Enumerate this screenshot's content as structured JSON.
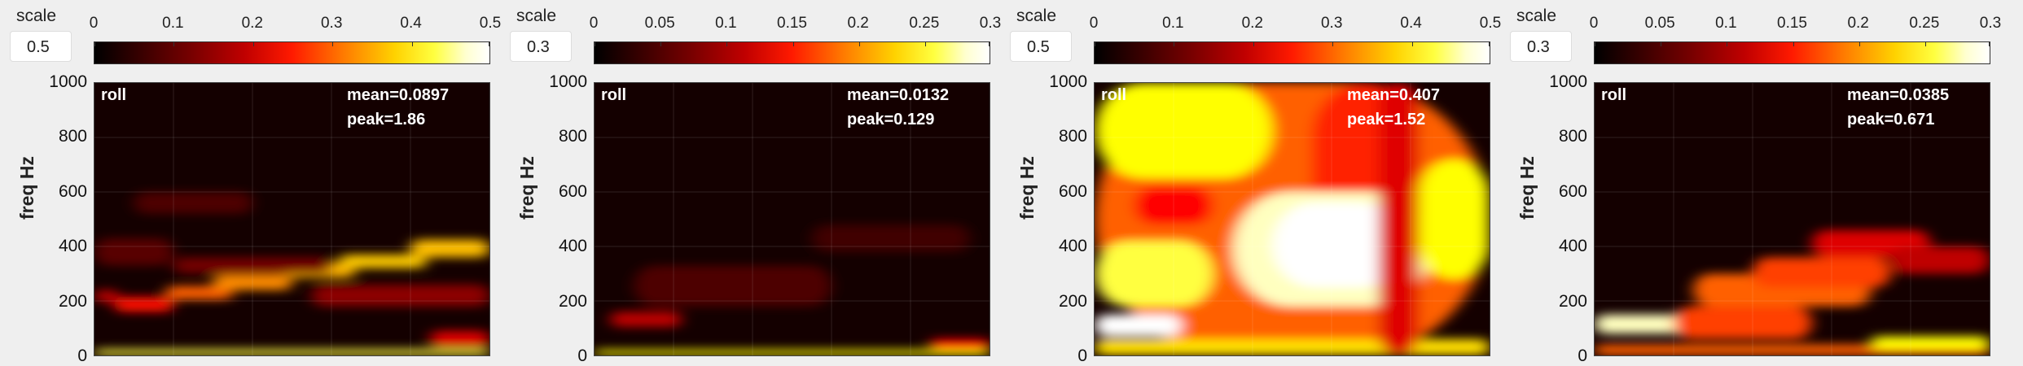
{
  "scale_label": "scale",
  "chart_data": [
    {
      "type": "heatmap",
      "scale_value": "0.5",
      "colorbar_ticks": [
        "0",
        "0.1",
        "0.2",
        "0.3",
        "0.4",
        "0.5"
      ],
      "clim": [
        0,
        0.5
      ],
      "ylabel": "freq Hz",
      "yticks": [
        "1000",
        "800",
        "600",
        "400",
        "200",
        "0"
      ],
      "ylim": [
        0,
        1000
      ],
      "label": "roll",
      "mean": "mean=0.0897",
      "peak": "peak=1.86",
      "colormap": "hot",
      "blobs": [
        {
          "x0": 0.0,
          "x1": 0.06,
          "y0": 195,
          "y1": 240,
          "v": 0.3
        },
        {
          "x0": 0.05,
          "x1": 0.2,
          "y0": 160,
          "y1": 215,
          "v": 0.42
        },
        {
          "x0": 0.18,
          "x1": 0.35,
          "y0": 205,
          "y1": 255,
          "v": 0.55
        },
        {
          "x0": 0.3,
          "x1": 0.5,
          "y0": 240,
          "y1": 295,
          "v": 0.62
        },
        {
          "x0": 0.48,
          "x1": 0.66,
          "y0": 285,
          "y1": 340,
          "v": 0.68
        },
        {
          "x0": 0.62,
          "x1": 0.84,
          "y0": 320,
          "y1": 370,
          "v": 0.72
        },
        {
          "x0": 0.8,
          "x1": 1.0,
          "y0": 360,
          "y1": 425,
          "v": 0.7
        },
        {
          "x0": 0.2,
          "x1": 0.6,
          "y0": 300,
          "y1": 360,
          "v": 0.18
        },
        {
          "x0": 0.55,
          "x1": 1.0,
          "y0": 180,
          "y1": 260,
          "v": 0.22
        },
        {
          "x0": 0.1,
          "x1": 0.4,
          "y0": 520,
          "y1": 600,
          "v": 0.12
        },
        {
          "x0": 0.0,
          "x1": 1.0,
          "y0": 0,
          "y1": 22,
          "v": 0.85
        },
        {
          "x0": 0.85,
          "x1": 1.0,
          "y0": 30,
          "y1": 90,
          "v": 0.35
        },
        {
          "x0": 0.0,
          "x1": 0.2,
          "y0": 330,
          "y1": 430,
          "v": 0.14
        }
      ]
    },
    {
      "type": "heatmap",
      "scale_value": "0.3",
      "colorbar_ticks": [
        "0",
        "0.05",
        "0.1",
        "0.15",
        "0.2",
        "0.25",
        "0.3"
      ],
      "clim": [
        0,
        0.3
      ],
      "ylabel": "freq Hz",
      "yticks": [
        "1000",
        "800",
        "600",
        "400",
        "200",
        "0"
      ],
      "ylim": [
        0,
        1000
      ],
      "label": "roll",
      "mean": "mean=0.0132",
      "peak": "peak=0.129",
      "colormap": "hot",
      "blobs": [
        {
          "x0": 0.04,
          "x1": 0.22,
          "y0": 105,
          "y1": 160,
          "v": 0.3
        },
        {
          "x0": 0.0,
          "x1": 1.0,
          "y0": 0,
          "y1": 20,
          "v": 0.8
        },
        {
          "x0": 0.1,
          "x1": 0.6,
          "y0": 180,
          "y1": 330,
          "v": 0.12
        },
        {
          "x0": 0.55,
          "x1": 0.95,
          "y0": 380,
          "y1": 480,
          "v": 0.1
        },
        {
          "x0": 0.85,
          "x1": 1.0,
          "y0": 20,
          "y1": 60,
          "v": 0.4
        }
      ]
    },
    {
      "type": "heatmap",
      "scale_value": "0.5",
      "colorbar_ticks": [
        "0",
        "0.1",
        "0.2",
        "0.3",
        "0.4",
        "0.5"
      ],
      "clim": [
        0,
        0.5
      ],
      "ylabel": "freq Hz",
      "yticks": [
        "1000",
        "800",
        "600",
        "400",
        "200",
        "0"
      ],
      "ylim": [
        0,
        1000
      ],
      "label": "roll",
      "mean": "mean=0.407",
      "peak": "peak=1.52",
      "colormap": "hot",
      "blobs": [
        {
          "x0": 0.0,
          "x1": 1.0,
          "y0": 0,
          "y1": 1000,
          "v": 0.55
        },
        {
          "x0": 0.0,
          "x1": 0.45,
          "y0": 650,
          "y1": 1000,
          "v": 0.8
        },
        {
          "x0": 0.55,
          "x1": 0.82,
          "y0": 450,
          "y1": 1000,
          "v": 0.45
        },
        {
          "x0": 0.35,
          "x1": 0.85,
          "y0": 180,
          "y1": 600,
          "v": 0.95
        },
        {
          "x0": 0.45,
          "x1": 0.78,
          "y0": 250,
          "y1": 560,
          "v": 1.0
        },
        {
          "x0": 0.0,
          "x1": 0.3,
          "y0": 180,
          "y1": 420,
          "v": 0.85
        },
        {
          "x0": 0.0,
          "x1": 0.22,
          "y0": 70,
          "y1": 150,
          "v": 1.0
        },
        {
          "x0": 0.0,
          "x1": 1.0,
          "y0": 0,
          "y1": 60,
          "v": 0.75
        },
        {
          "x0": 0.1,
          "x1": 0.3,
          "y0": 480,
          "y1": 620,
          "v": 0.4
        },
        {
          "x0": 0.82,
          "x1": 1.0,
          "y0": 280,
          "y1": 720,
          "v": 0.8
        },
        {
          "x0": 0.72,
          "x1": 0.82,
          "y0": 0,
          "y1": 1000,
          "v": 0.35
        }
      ]
    },
    {
      "type": "heatmap",
      "scale_value": "0.3",
      "colorbar_ticks": [
        "0",
        "0.05",
        "0.1",
        "0.15",
        "0.2",
        "0.25",
        "0.3"
      ],
      "clim": [
        0,
        0.3
      ],
      "ylabel": "freq Hz",
      "yticks": [
        "1000",
        "800",
        "600",
        "400",
        "200",
        "0"
      ],
      "ylim": [
        0,
        1000
      ],
      "label": "roll",
      "mean": "mean=0.0385",
      "peak": "peak=0.671",
      "colormap": "hot",
      "blobs": [
        {
          "x0": 0.0,
          "x1": 0.25,
          "y0": 80,
          "y1": 150,
          "v": 0.95
        },
        {
          "x0": 0.0,
          "x1": 1.0,
          "y0": 0,
          "y1": 40,
          "v": 0.55
        },
        {
          "x0": 0.25,
          "x1": 0.7,
          "y0": 180,
          "y1": 300,
          "v": 0.55
        },
        {
          "x0": 0.4,
          "x1": 0.75,
          "y0": 250,
          "y1": 360,
          "v": 0.5
        },
        {
          "x0": 0.55,
          "x1": 0.85,
          "y0": 360,
          "y1": 460,
          "v": 0.35
        },
        {
          "x0": 0.2,
          "x1": 0.55,
          "y0": 60,
          "y1": 180,
          "v": 0.5
        },
        {
          "x0": 0.7,
          "x1": 1.0,
          "y0": 20,
          "y1": 70,
          "v": 0.8
        },
        {
          "x0": 0.75,
          "x1": 1.0,
          "y0": 300,
          "y1": 400,
          "v": 0.3
        }
      ]
    }
  ]
}
